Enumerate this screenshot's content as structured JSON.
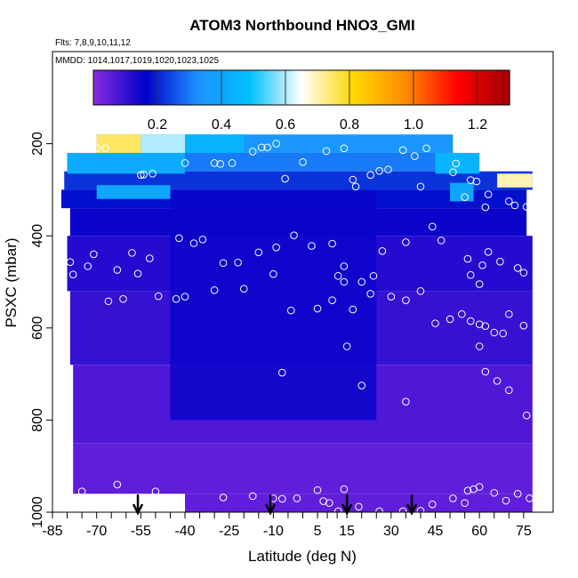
{
  "chart_data": {
    "type": "heatmap",
    "title": "ATOM3 Northbound HNO3_GMI",
    "notes": [
      "Flts: 7,8,9,10,11,12",
      "MMDD: 1014,1017,1019,1020,1023,1025"
    ],
    "xlabel": "Latitude (deg N)",
    "ylabel": "PSXC (mbar)",
    "xlim": [
      -85,
      85
    ],
    "ylim": [
      1000,
      0
    ],
    "y_reversed": true,
    "x_ticks": [
      -85,
      -70,
      -55,
      -40,
      -25,
      -10,
      5,
      15,
      30,
      45,
      60,
      75
    ],
    "y_ticks": [
      200,
      400,
      600,
      800,
      1000
    ],
    "colorbar": {
      "range": [
        0,
        1.3
      ],
      "ticks": [
        0.2,
        0.4,
        0.6,
        0.8,
        1.0,
        1.2
      ],
      "tick_labels": [
        "0.2",
        "0.4",
        "0.6",
        "0.8",
        "1.0",
        "1.2"
      ],
      "colors": [
        "#8a2be2",
        "#0000c8",
        "#1e90ff",
        "#00bfff",
        "#ffffff",
        "#ffd700",
        "#ff8c00",
        "#ff0000",
        "#a00000"
      ]
    },
    "field_rows": [
      {
        "p_top": 180,
        "p_bot": 220,
        "x_start": -70,
        "x_end": 51,
        "value": 0.35
      },
      {
        "p_top": 220,
        "p_bot": 260,
        "x_start": -80,
        "x_end": 58,
        "value": 0.3
      },
      {
        "p_top": 260,
        "p_bot": 300,
        "x_start": -81,
        "x_end": 78,
        "value": 0.22
      },
      {
        "p_top": 300,
        "p_bot": 340,
        "x_start": -82,
        "x_end": 76,
        "value": 0.18
      },
      {
        "p_top": 340,
        "p_bot": 400,
        "x_start": -79,
        "x_end": 76,
        "value": 0.15
      },
      {
        "p_top": 400,
        "p_bot": 520,
        "x_start": -80,
        "x_end": 78,
        "value": 0.12
      },
      {
        "p_top": 520,
        "p_bot": 680,
        "x_start": -79,
        "x_end": 78,
        "value": 0.1
      },
      {
        "p_top": 680,
        "p_bot": 850,
        "x_start": -78,
        "x_end": 78,
        "value": 0.07
      },
      {
        "p_top": 850,
        "p_bot": 960,
        "x_start": -78,
        "x_end": 78,
        "value": 0.05
      },
      {
        "p_top": 960,
        "p_bot": 1000,
        "x_start": -40,
        "x_end": 78,
        "value": 0.05
      }
    ],
    "high_patches": [
      {
        "x0": -70,
        "x1": -55,
        "p0": 180,
        "p1": 220,
        "value": 0.75
      },
      {
        "x0": -55,
        "x1": -40,
        "p0": 180,
        "p1": 220,
        "value": 0.6
      },
      {
        "x0": -40,
        "x1": -20,
        "p0": 180,
        "p1": 220,
        "value": 0.45
      },
      {
        "x0": -80,
        "x1": -40,
        "p0": 220,
        "p1": 265,
        "value": 0.42
      },
      {
        "x0": -70,
        "x1": -45,
        "p0": 290,
        "p1": 320,
        "value": 0.4
      },
      {
        "x0": 45,
        "x1": 60,
        "p0": 220,
        "p1": 265,
        "value": 0.45
      },
      {
        "x0": 66,
        "x1": 78,
        "p0": 265,
        "p1": 295,
        "value": 0.7
      },
      {
        "x0": 50,
        "x1": 58,
        "p0": 285,
        "p1": 325,
        "value": 0.4
      }
    ],
    "low_blue_core": {
      "x0": -45,
      "x1": 25,
      "p0": 300,
      "p1": 800,
      "value": 0.15
    },
    "flight_sample_points": [
      [
        -80,
        210
      ],
      [
        -70,
        210
      ],
      [
        -67,
        210
      ],
      [
        -55,
        268
      ],
      [
        -54,
        267
      ],
      [
        -51,
        265
      ],
      [
        -40,
        242
      ],
      [
        -30,
        242
      ],
      [
        -28,
        244
      ],
      [
        -24,
        242
      ],
      [
        -17,
        217
      ],
      [
        -14,
        208
      ],
      [
        -12,
        208
      ],
      [
        -9,
        200
      ],
      [
        -6,
        276
      ],
      [
        0,
        240
      ],
      [
        8,
        216
      ],
      [
        14,
        210
      ],
      [
        17,
        278
      ],
      [
        18,
        293
      ],
      [
        23,
        268
      ],
      [
        26,
        259
      ],
      [
        29,
        256
      ],
      [
        34,
        214
      ],
      [
        38,
        227
      ],
      [
        40,
        293
      ],
      [
        42,
        210
      ],
      [
        51,
        262
      ],
      [
        52,
        243
      ],
      [
        55,
        316
      ],
      [
        57,
        279
      ],
      [
        59,
        282
      ],
      [
        62,
        338
      ],
      [
        63,
        310
      ],
      [
        70,
        325
      ],
      [
        72,
        334
      ],
      [
        76,
        337
      ],
      [
        78,
        373
      ],
      [
        80,
        275
      ],
      [
        -83,
        352
      ],
      [
        -79,
        457
      ],
      [
        -73,
        466
      ],
      [
        -71,
        440
      ],
      [
        -63,
        474
      ],
      [
        -58,
        437
      ],
      [
        -52,
        449
      ],
      [
        -42,
        405
      ],
      [
        -37,
        416
      ],
      [
        -34,
        408
      ],
      [
        -27,
        459
      ],
      [
        -22,
        458
      ],
      [
        -15,
        436
      ],
      [
        -9,
        425
      ],
      [
        -3,
        399
      ],
      [
        3,
        422
      ],
      [
        10,
        417
      ],
      [
        12,
        487
      ],
      [
        14,
        466
      ],
      [
        20,
        500
      ],
      [
        24,
        487
      ],
      [
        27,
        433
      ],
      [
        35,
        414
      ],
      [
        44,
        380
      ],
      [
        47,
        410
      ],
      [
        56,
        450
      ],
      [
        57,
        485
      ],
      [
        60,
        505
      ],
      [
        61,
        464
      ],
      [
        63,
        435
      ],
      [
        67,
        456
      ],
      [
        73,
        470
      ],
      [
        75,
        480
      ],
      [
        -78,
        484
      ],
      [
        -66,
        542
      ],
      [
        -61,
        537
      ],
      [
        -56,
        482
      ],
      [
        -49,
        531
      ],
      [
        -43,
        537
      ],
      [
        -40,
        532
      ],
      [
        -30,
        518
      ],
      [
        -20,
        515
      ],
      [
        -10,
        483
      ],
      [
        -4,
        562
      ],
      [
        5,
        558
      ],
      [
        10,
        540
      ],
      [
        14,
        500
      ],
      [
        17,
        560
      ],
      [
        23,
        526
      ],
      [
        30,
        532
      ],
      [
        35,
        540
      ],
      [
        40,
        520
      ],
      [
        45,
        590
      ],
      [
        50,
        581
      ],
      [
        54,
        570
      ],
      [
        57,
        585
      ],
      [
        60,
        592
      ],
      [
        62,
        596
      ],
      [
        65,
        610
      ],
      [
        68,
        612
      ],
      [
        70,
        570
      ],
      [
        75,
        595
      ],
      [
        -7,
        697
      ],
      [
        15,
        640
      ],
      [
        20,
        725
      ],
      [
        35,
        760
      ],
      [
        60,
        640
      ],
      [
        62,
        695
      ],
      [
        66,
        715
      ],
      [
        70,
        735
      ],
      [
        76,
        790
      ],
      [
        -80,
        950
      ],
      [
        -75,
        955
      ],
      [
        -63,
        940
      ],
      [
        -50,
        955
      ],
      [
        -42,
        975
      ],
      [
        -27,
        968
      ],
      [
        -17,
        965
      ],
      [
        -10,
        970
      ],
      [
        -7,
        971
      ],
      [
        -2,
        970
      ],
      [
        5,
        952
      ],
      [
        7,
        976
      ],
      [
        9,
        980
      ],
      [
        12,
        998
      ],
      [
        14,
        950
      ],
      [
        19,
        988
      ],
      [
        26,
        998
      ],
      [
        34,
        998
      ],
      [
        40,
        997
      ],
      [
        44,
        983
      ],
      [
        51,
        970
      ],
      [
        55,
        980
      ],
      [
        56,
        953
      ],
      [
        58,
        950
      ],
      [
        60,
        945
      ],
      [
        65,
        958
      ],
      [
        69,
        975
      ],
      [
        73,
        960
      ],
      [
        77,
        970
      ]
    ],
    "arrows_at_latitude": [
      -56,
      -11,
      15,
      37
    ]
  }
}
